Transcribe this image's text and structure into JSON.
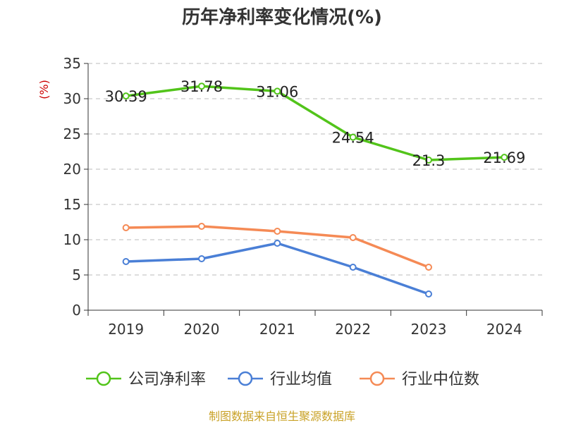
{
  "chart_data": {
    "type": "line",
    "title": "历年净利率变化情况(%)",
    "ylabel": "(%)",
    "xlabel": "",
    "categories": [
      "2019",
      "2020",
      "2021",
      "2022",
      "2023",
      "2024"
    ],
    "ylim": [
      0,
      35
    ],
    "yticks": [
      0,
      5,
      10,
      15,
      20,
      25,
      30,
      35
    ],
    "grid": true,
    "legend_position": "bottom",
    "series": [
      {
        "name": "公司净利率",
        "color": "#52c41a",
        "values": [
          30.39,
          31.78,
          31.06,
          24.54,
          21.3,
          21.69
        ],
        "labels": [
          "30.39",
          "31.78",
          "31.06",
          "24.54",
          "21.3",
          "21.69"
        ]
      },
      {
        "name": "行业均值",
        "color": "#4a7fd6",
        "values": [
          6.9,
          7.3,
          9.5,
          6.1,
          2.3,
          null
        ]
      },
      {
        "name": "行业中位数",
        "color": "#f58a55",
        "values": [
          11.7,
          11.9,
          11.2,
          10.3,
          6.1,
          null
        ]
      }
    ]
  },
  "source_text": "制图数据来自恒生聚源数据库",
  "colors": {
    "axis": "#333333",
    "grid": "#bbbbbb",
    "unit": "#cc0000"
  }
}
